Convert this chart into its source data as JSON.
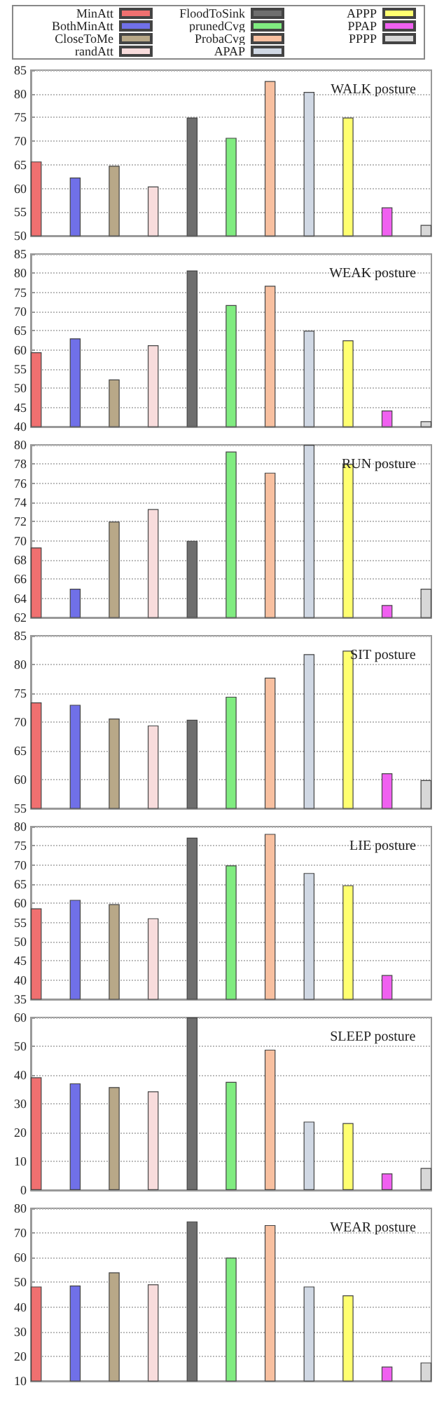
{
  "chart_data": [
    {
      "type": "bar",
      "title": "WALK posture",
      "categories": [
        null
      ],
      "legend": "top",
      "grid": "y",
      "ylim": [
        50,
        85
      ],
      "yticks": [
        50,
        55,
        60,
        65,
        70,
        75,
        80,
        85
      ],
      "series": [
        {
          "name": "MinAtt",
          "color": "#f07070",
          "values": [
            65.7
          ]
        },
        {
          "name": "BothMinAtt",
          "color": "#7070e8",
          "values": [
            62.3
          ]
        },
        {
          "name": "CloseToMe",
          "color": "#b8a888",
          "values": [
            64.8
          ]
        },
        {
          "name": "randAtt",
          "color": "#f8dcdc",
          "values": [
            60.4
          ]
        },
        {
          "name": "FloodToSink",
          "color": "#6e6e6e",
          "values": [
            75
          ]
        },
        {
          "name": "prunedCvg",
          "color": "#80ec80",
          "values": [
            70.7
          ]
        },
        {
          "name": "ProbaCvg",
          "color": "#f8c0a0",
          "values": [
            82.7
          ]
        },
        {
          "name": "APAP",
          "color": "#d0d8e4",
          "values": [
            80.4
          ]
        },
        {
          "name": "APPP",
          "color": "#ffff70",
          "values": [
            75
          ]
        },
        {
          "name": "PPAP",
          "color": "#f060f0",
          "values": [
            56
          ]
        },
        {
          "name": "PPPP",
          "color": "#d8d8d8",
          "values": [
            52.3
          ]
        }
      ]
    },
    {
      "type": "bar",
      "title": "WEAK posture",
      "categories": [
        null
      ],
      "grid": "y",
      "ylim": [
        40,
        85
      ],
      "yticks": [
        40,
        45,
        50,
        55,
        60,
        65,
        70,
        75,
        80,
        85
      ],
      "series": [
        {
          "color": "#f07070",
          "values": [
            59.4
          ]
        },
        {
          "color": "#7070e8",
          "values": [
            63
          ]
        },
        {
          "color": "#b8a888",
          "values": [
            52.3
          ]
        },
        {
          "color": "#f8dcdc",
          "values": [
            61.2
          ]
        },
        {
          "color": "#6e6e6e",
          "values": [
            80.7
          ]
        },
        {
          "color": "#80ec80",
          "values": [
            71.7
          ]
        },
        {
          "color": "#f8c0a0",
          "values": [
            76.7
          ]
        },
        {
          "color": "#d0d8e4",
          "values": [
            65
          ]
        },
        {
          "color": "#ffff70",
          "values": [
            62.5
          ]
        },
        {
          "color": "#f060f0",
          "values": [
            44.2
          ]
        },
        {
          "color": "#d8d8d8",
          "values": [
            41.4
          ]
        }
      ]
    },
    {
      "type": "bar",
      "title": "RUN posture",
      "categories": [
        null
      ],
      "grid": "y",
      "ylim": [
        62,
        80
      ],
      "yticks": [
        62,
        64,
        66,
        68,
        70,
        72,
        74,
        76,
        78,
        80
      ],
      "series": [
        {
          "color": "#f07070",
          "values": [
            69.3
          ]
        },
        {
          "color": "#7070e8",
          "values": [
            65
          ]
        },
        {
          "color": "#b8a888",
          "values": [
            72
          ]
        },
        {
          "color": "#f8dcdc",
          "values": [
            73.3
          ]
        },
        {
          "color": "#6e6e6e",
          "values": [
            70
          ]
        },
        {
          "color": "#80ec80",
          "values": [
            79.3
          ]
        },
        {
          "color": "#f8c0a0",
          "values": [
            77.1
          ]
        },
        {
          "color": "#d0d8e4",
          "values": [
            80
          ]
        },
        {
          "color": "#ffff70",
          "values": [
            78
          ]
        },
        {
          "color": "#f060f0",
          "values": [
            63.3
          ]
        },
        {
          "color": "#d8d8d8",
          "values": [
            65
          ]
        }
      ]
    },
    {
      "type": "bar",
      "title": "SIT posture",
      "categories": [
        null
      ],
      "grid": "y",
      "ylim": [
        55,
        85
      ],
      "yticks": [
        55,
        60,
        65,
        70,
        75,
        80,
        85
      ],
      "series": [
        {
          "color": "#f07070",
          "values": [
            73.4
          ]
        },
        {
          "color": "#7070e8",
          "values": [
            73
          ]
        },
        {
          "color": "#b8a888",
          "values": [
            70.6
          ]
        },
        {
          "color": "#f8dcdc",
          "values": [
            69.4
          ]
        },
        {
          "color": "#6e6e6e",
          "values": [
            70.4
          ]
        },
        {
          "color": "#80ec80",
          "values": [
            74.4
          ]
        },
        {
          "color": "#f8c0a0",
          "values": [
            77.7
          ]
        },
        {
          "color": "#d0d8e4",
          "values": [
            81.8
          ]
        },
        {
          "color": "#ffff70",
          "values": [
            82.4
          ]
        },
        {
          "color": "#f060f0",
          "values": [
            61.1
          ]
        },
        {
          "color": "#d8d8d8",
          "values": [
            59.9
          ]
        }
      ]
    },
    {
      "type": "bar",
      "title": "LIE posture",
      "categories": [
        null
      ],
      "grid": "y",
      "ylim": [
        35,
        80
      ],
      "yticks": [
        35,
        40,
        45,
        50,
        55,
        60,
        65,
        70,
        75,
        80
      ],
      "series": [
        {
          "color": "#f07070",
          "values": [
            58.7
          ]
        },
        {
          "color": "#7070e8",
          "values": [
            60.9
          ]
        },
        {
          "color": "#b8a888",
          "values": [
            59.8
          ]
        },
        {
          "color": "#f8dcdc",
          "values": [
            56.1
          ]
        },
        {
          "color": "#6e6e6e",
          "values": [
            77.1
          ]
        },
        {
          "color": "#80ec80",
          "values": [
            69.9
          ]
        },
        {
          "color": "#f8c0a0",
          "values": [
            78.1
          ]
        },
        {
          "color": "#d0d8e4",
          "values": [
            67.9
          ]
        },
        {
          "color": "#ffff70",
          "values": [
            64.7
          ]
        },
        {
          "color": "#f060f0",
          "values": [
            41.3
          ]
        },
        {
          "color": "#d8d8d8",
          "values": [
            null
          ]
        }
      ]
    },
    {
      "type": "bar",
      "title": "SLEEP posture",
      "categories": [
        null
      ],
      "grid": "y",
      "ylim": [
        0,
        60
      ],
      "yticks": [
        0,
        10,
        20,
        30,
        40,
        50,
        60
      ],
      "series": [
        {
          "color": "#f07070",
          "values": [
            39.2
          ]
        },
        {
          "color": "#7070e8",
          "values": [
            37.1
          ]
        },
        {
          "color": "#b8a888",
          "values": [
            35.8
          ]
        },
        {
          "color": "#f8dcdc",
          "values": [
            34.3
          ]
        },
        {
          "color": "#6e6e6e",
          "values": [
            60
          ]
        },
        {
          "color": "#80ec80",
          "values": [
            37.6
          ]
        },
        {
          "color": "#f8c0a0",
          "values": [
            48.8
          ]
        },
        {
          "color": "#d0d8e4",
          "values": [
            23.8
          ]
        },
        {
          "color": "#ffff70",
          "values": [
            23.3
          ]
        },
        {
          "color": "#f060f0",
          "values": [
            5.8
          ]
        },
        {
          "color": "#d8d8d8",
          "values": [
            7.7
          ]
        }
      ]
    },
    {
      "type": "bar",
      "title": "WEAR posture",
      "categories": [
        null
      ],
      "grid": "y",
      "ylim": [
        10,
        80
      ],
      "yticks": [
        10,
        20,
        30,
        40,
        50,
        60,
        70,
        80
      ],
      "series": [
        {
          "color": "#f07070",
          "values": [
            48.3
          ]
        },
        {
          "color": "#7070e8",
          "values": [
            48.7
          ]
        },
        {
          "color": "#b8a888",
          "values": [
            54
          ]
        },
        {
          "color": "#f8dcdc",
          "values": [
            49.2
          ]
        },
        {
          "color": "#6e6e6e",
          "values": [
            74.7
          ]
        },
        {
          "color": "#80ec80",
          "values": [
            60
          ]
        },
        {
          "color": "#f8c0a0",
          "values": [
            73.2
          ]
        },
        {
          "color": "#d0d8e4",
          "values": [
            48.3
          ]
        },
        {
          "color": "#ffff70",
          "values": [
            44.7
          ]
        },
        {
          "color": "#f060f0",
          "values": [
            15.8
          ]
        },
        {
          "color": "#d8d8d8",
          "values": [
            17.5
          ]
        }
      ]
    }
  ]
}
